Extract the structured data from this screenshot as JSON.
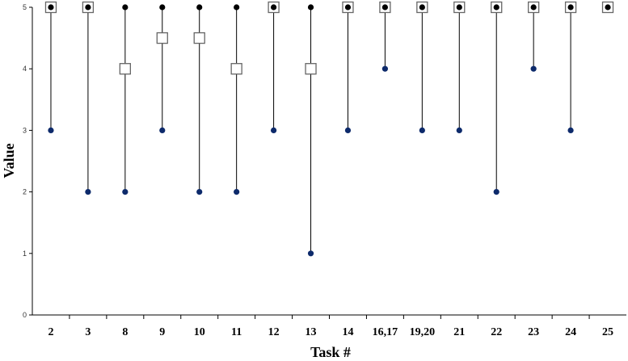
{
  "chart_data": {
    "type": "scatter",
    "xlabel": "Task #",
    "ylabel": "Value",
    "ylim": [
      0,
      5
    ],
    "yticks": [
      "0",
      "1",
      "2",
      "3",
      "4",
      "5"
    ],
    "grid": false,
    "categories": [
      "2",
      "3",
      "8",
      "9",
      "10",
      "11",
      "12",
      "13",
      "14",
      "16,17",
      "19,20",
      "21",
      "22",
      "23",
      "24",
      "25"
    ],
    "series": [
      {
        "marker": "square-open",
        "values": [
          5,
          5,
          4,
          4.5,
          4.5,
          4,
          5,
          4,
          5,
          5,
          5,
          5,
          5,
          5,
          5,
          5
        ]
      },
      {
        "marker": "circle-black",
        "values": [
          5,
          5,
          5,
          5,
          5,
          5,
          5,
          5,
          5,
          5,
          5,
          5,
          5,
          5,
          5,
          5
        ]
      },
      {
        "marker": "circle-navy",
        "values": [
          3,
          2,
          2,
          3,
          2,
          2,
          3,
          1,
          3,
          4,
          3,
          3,
          2,
          4,
          3,
          null
        ]
      }
    ],
    "colors": {
      "low": "#0d2a6b",
      "high": "#000000",
      "line": "#000000",
      "square_stroke": "#666666"
    }
  }
}
